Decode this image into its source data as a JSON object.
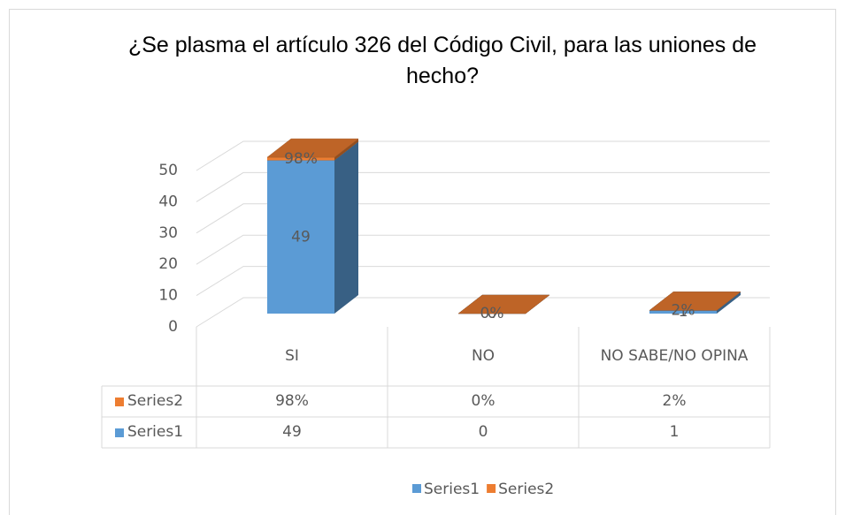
{
  "chart_data": {
    "type": "bar",
    "title": "¿Se plasma el artículo 326 del Código Civil, para las uniones de hecho?",
    "categories": [
      "SI",
      "NO",
      "NO SABE/NO OPINA"
    ],
    "series": [
      {
        "name": "Series1",
        "color": "#5b9bd5",
        "values": [
          49,
          0,
          1
        ]
      },
      {
        "name": "Series2",
        "color": "#ed7d31",
        "values": [
          0.98,
          0,
          0.02
        ],
        "value_labels": [
          "98%",
          "0%",
          "2%"
        ]
      }
    ],
    "ylim": [
      0,
      50
    ],
    "yticks": [
      0,
      10,
      20,
      30,
      40,
      50
    ],
    "grid": true,
    "legend": "bottom"
  }
}
